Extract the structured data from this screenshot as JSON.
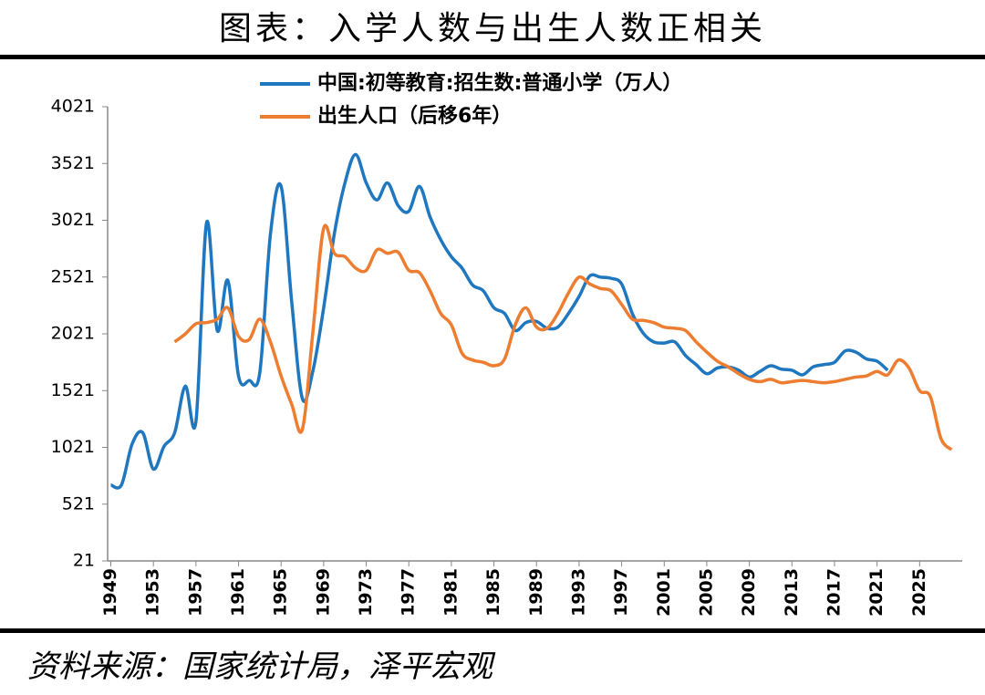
{
  "chart_data": {
    "type": "line",
    "title": "图表：入学人数与出生人数正相关",
    "source": "资料来源：国家统计局，泽平宏观",
    "x": [
      1949,
      1950,
      1951,
      1952,
      1953,
      1954,
      1955,
      1956,
      1957,
      1958,
      1959,
      1960,
      1961,
      1962,
      1963,
      1964,
      1965,
      1966,
      1967,
      1968,
      1969,
      1970,
      1971,
      1972,
      1973,
      1974,
      1975,
      1976,
      1977,
      1978,
      1979,
      1980,
      1981,
      1982,
      1983,
      1984,
      1985,
      1986,
      1987,
      1988,
      1989,
      1990,
      1991,
      1992,
      1993,
      1994,
      1995,
      1996,
      1997,
      1998,
      1999,
      2000,
      2001,
      2002,
      2003,
      2004,
      2005,
      2006,
      2007,
      2008,
      2009,
      2010,
      2011,
      2012,
      2013,
      2014,
      2015,
      2016,
      2017,
      2018,
      2019,
      2020,
      2021,
      2022,
      2023,
      2024,
      2025,
      2026,
      2027,
      2028
    ],
    "series": [
      {
        "name": "中国:初等教育:招生数:普通小学（万人）",
        "color": "#1f77c0",
        "values": [
          690,
          690,
          1050,
          1150,
          830,
          1030,
          1150,
          1560,
          1250,
          3000,
          2050,
          2490,
          1650,
          1610,
          1680,
          2900,
          3320,
          2300,
          1450,
          1700,
          2250,
          2900,
          3350,
          3600,
          3350,
          3200,
          3350,
          3150,
          3100,
          3320,
          3050,
          2850,
          2700,
          2600,
          2450,
          2400,
          2250,
          2200,
          2050,
          2120,
          2130,
          2070,
          2080,
          2200,
          2350,
          2530,
          2520,
          2510,
          2460,
          2200,
          2030,
          1950,
          1940,
          1950,
          1830,
          1750,
          1670,
          1720,
          1730,
          1700,
          1640,
          1690,
          1740,
          1710,
          1700,
          1660,
          1730,
          1750,
          1770,
          1870,
          1860,
          1800,
          1780,
          1700,
          null,
          null,
          null,
          null,
          null,
          null
        ]
      },
      {
        "name": "出生人口（后移6年）",
        "color": "#ed7d31",
        "values": [
          null,
          null,
          null,
          null,
          null,
          null,
          1950,
          2020,
          2110,
          2120,
          2150,
          2250,
          2000,
          1970,
          2150,
          1950,
          1650,
          1400,
          1180,
          2050,
          2950,
          2730,
          2700,
          2600,
          2580,
          2760,
          2730,
          2740,
          2580,
          2560,
          2400,
          2200,
          2100,
          1850,
          1790,
          1770,
          1740,
          1800,
          2100,
          2250,
          2080,
          2070,
          2200,
          2380,
          2520,
          2460,
          2420,
          2400,
          2280,
          2150,
          2140,
          2120,
          2080,
          2070,
          2050,
          1950,
          1860,
          1780,
          1730,
          1670,
          1620,
          1600,
          1620,
          1590,
          1600,
          1610,
          1600,
          1590,
          1600,
          1620,
          1640,
          1650,
          1690,
          1660,
          1790,
          1720,
          1520,
          1470,
          1100,
          1000
        ]
      }
    ],
    "xlim": [
      1948.7,
      2029
    ],
    "xticks": [
      1949,
      1953,
      1957,
      1961,
      1965,
      1969,
      1973,
      1977,
      1981,
      1985,
      1989,
      1993,
      1997,
      2001,
      2005,
      2009,
      2013,
      2017,
      2021,
      2025
    ],
    "ylim": [
      21,
      4021
    ],
    "yticks": [
      21,
      521,
      1021,
      1521,
      2021,
      2521,
      3021,
      3521,
      4021
    ]
  }
}
